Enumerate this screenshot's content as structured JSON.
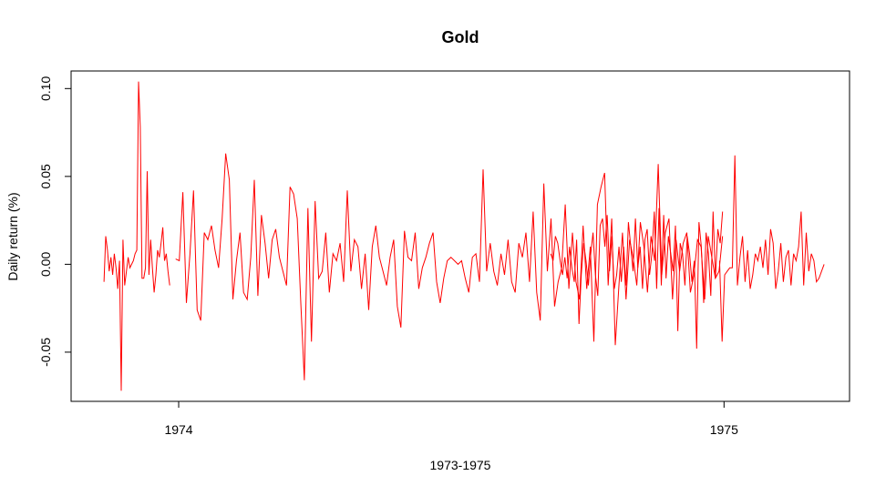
{
  "chart_data": {
    "type": "line",
    "title": "Gold",
    "xlabel": "1973-1975",
    "ylabel": "Daily return (%)",
    "xlim": [
      "1973-10-21",
      "1975-03-26"
    ],
    "ylim": [
      -0.078,
      0.11
    ],
    "x_ticks": [
      {
        "date": "1974-01-01",
        "label": "1974"
      },
      {
        "date": "1975-01-01",
        "label": "1975"
      }
    ],
    "y_ticks": [
      {
        "value": -0.05,
        "label": "-0.05"
      },
      {
        "value": 0.0,
        "label": "0.00"
      },
      {
        "value": 0.05,
        "label": "0.05"
      },
      {
        "value": 0.1,
        "label": "0.10"
      }
    ],
    "grid": false,
    "series": [
      {
        "color": "#ff0000",
        "segments": [
          {
            "start": "1973-11-12",
            "end": "1973-12-26",
            "values": [
              -0.01,
              0.016,
              0.008,
              -0.004,
              0.004,
              -0.006,
              0.006,
              -0.002,
              -0.014,
              0.002,
              -0.072,
              0.014,
              -0.012,
              -0.004,
              0.004,
              -0.002,
              0.0,
              0.002,
              0.006,
              0.008,
              0.104,
              0.078,
              -0.008,
              -0.008,
              -0.002,
              0.053,
              -0.006,
              0.014,
              -0.002,
              -0.016,
              -0.006,
              0.008,
              0.004,
              0.012,
              0.021,
              0.002,
              0.006,
              -0.004,
              -0.012
            ]
          },
          {
            "start": "1973-12-30",
            "end": "1974-12-31",
            "values": [
              0.003,
              0.002,
              0.041,
              -0.022,
              0.006,
              0.042,
              -0.026,
              -0.032,
              0.018,
              0.014,
              0.022,
              0.008,
              -0.002,
              0.026,
              0.063,
              0.048,
              -0.02,
              0.002,
              0.018,
              -0.016,
              -0.02,
              0.004,
              0.048,
              -0.018,
              0.028,
              0.012,
              -0.008,
              0.014,
              0.02,
              0.004,
              -0.004,
              -0.012,
              0.044,
              0.04,
              0.026,
              -0.022,
              -0.066,
              0.032,
              -0.044,
              0.036,
              -0.008,
              -0.004,
              0.018,
              -0.016,
              0.006,
              0.002,
              0.012,
              -0.01,
              0.042,
              -0.004,
              0.014,
              0.01,
              -0.014,
              0.006,
              -0.026,
              0.01,
              0.022,
              0.004,
              -0.004,
              -0.012,
              0.004,
              0.014,
              -0.024,
              -0.036,
              0.019,
              0.004,
              0.002,
              0.018,
              -0.014,
              -0.002,
              0.004,
              0.012,
              0.018,
              -0.01,
              -0.022,
              -0.008,
              0.002,
              0.004,
              0.002,
              0.0,
              0.002,
              -0.008,
              -0.016,
              0.004,
              0.006,
              -0.01,
              0.054,
              -0.004,
              0.012,
              -0.004,
              -0.012,
              0.006,
              -0.006,
              0.014,
              -0.01,
              -0.016,
              0.012,
              0.004,
              0.018,
              -0.01,
              0.03,
              -0.016,
              -0.032,
              0.046,
              -0.004,
              0.026,
              -0.024,
              -0.01,
              -0.002,
              0.034,
              -0.014,
              0.018,
              -0.01,
              -0.02,
              0.022,
              -0.014,
              0.01,
              -0.044,
              0.034,
              0.044,
              0.052,
              -0.012,
              0.026,
              -0.046,
              -0.012,
              0.018,
              -0.02,
              0.014,
              0.004,
              -0.012,
              0.024,
              0.01,
              -0.016,
              0.016,
              0.002,
              0.057,
              -0.006,
              0.018,
              0.026,
              -0.02,
              0.014,
              -0.004,
              0.012,
              0.018,
              -0.016,
              -0.006,
              0.014,
              0.01,
              -0.02,
              0.016,
              0.004,
              -0.008,
              -0.004,
              0.016
            ],
            "gap_after": true
          },
          {
            "start": "1974-09-07",
            "end": "1974-12-31",
            "values": [
              0.006,
              0.002,
              0.016,
              0.012,
              0.002,
              -0.006,
              0.004,
              -0.008,
              0.01,
              -0.002,
              -0.01,
              0.014,
              -0.034,
              -0.006,
              0.012,
              0.002,
              -0.012,
              0.006,
              0.018,
              -0.006,
              -0.018,
              0.022,
              0.026,
              0.01,
              0.028,
              -0.004,
              0.016,
              -0.014,
              -0.006,
              0.01,
              -0.01,
              0.01,
              -0.012,
              0.024,
              0.01,
              -0.004,
              0.026,
              -0.002,
              0.01,
              -0.014,
              0.014,
              0.02,
              -0.006,
              0.006,
              0.03,
              -0.014,
              0.032,
              -0.012,
              0.028,
              -0.008,
              0.016,
              0.006,
              -0.004,
              0.022,
              -0.038,
              0.012,
              0.006,
              -0.012,
              0.016,
              0.006,
              -0.01,
              0.002,
              -0.048,
              0.024,
              0.01,
              -0.022,
              0.018,
              0.006,
              -0.018,
              0.03,
              -0.008,
              0.02,
              0.012,
              0.03
            ],
            "gap_after": true
          },
          {
            "start": "1974-12-29",
            "end": "1975-03-09",
            "values": [
              0.002,
              -0.044,
              -0.006,
              -0.004,
              -0.002,
              -0.002,
              0.062,
              -0.012,
              0.004,
              0.016,
              -0.01,
              0.008,
              -0.014,
              -0.006,
              0.006,
              0.002,
              0.01,
              -0.002,
              0.014,
              -0.006,
              0.02,
              0.012,
              -0.014,
              -0.004,
              0.012,
              -0.01,
              0.004,
              0.008,
              -0.012,
              0.006,
              0.002,
              0.01,
              0.03,
              -0.012,
              0.018,
              -0.004,
              0.006,
              0.002,
              -0.01,
              -0.008,
              -0.004,
              0.0
            ]
          }
        ]
      }
    ]
  }
}
